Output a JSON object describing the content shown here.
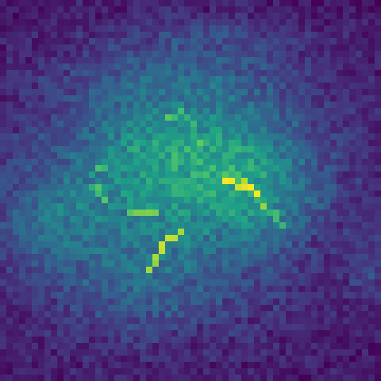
{
  "image": {
    "kind": "heatmap-visualization",
    "grid": {
      "cols": 60,
      "rows": 60
    },
    "colormap": "viridis",
    "colormap_stops": [
      "#440154",
      "#46337e",
      "#365c8d",
      "#277f8e",
      "#1fa187",
      "#4ac16d",
      "#a0da39",
      "#fde725"
    ],
    "background_level": 0.05,
    "has_axes": false,
    "has_legend": false,
    "has_text": false
  }
}
